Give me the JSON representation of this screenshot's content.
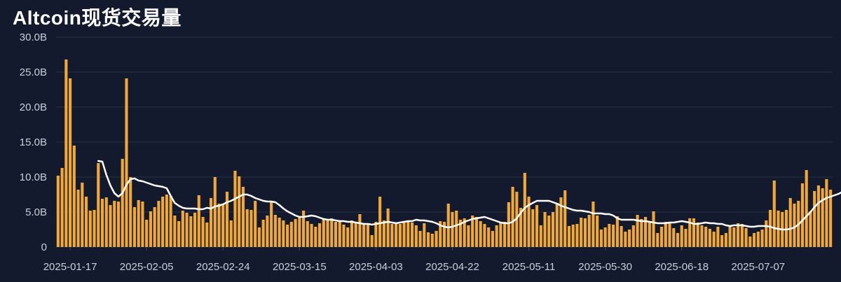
{
  "chart_data": {
    "type": "bar",
    "title": "Altcoin现货交易量",
    "xlabel": "",
    "ylabel": "",
    "y_unit": "B",
    "ylim": [
      0,
      30
    ],
    "y_ticks": [
      "0",
      "5.0B",
      "10.0B",
      "15.0B",
      "20.0B",
      "25.0B",
      "30.0B"
    ],
    "x_tick_labels": [
      "2025-01-17",
      "2025-02-05",
      "2025-02-24",
      "2025-03-15",
      "2025-04-03",
      "2025-04-22",
      "2025-05-11",
      "2025-05-30",
      "2025-06-18",
      "2025-07-07"
    ],
    "grid": true,
    "bar_color": "#f0a73c",
    "line_color": "#ffffff",
    "start_date": "2025-01-14",
    "series": [
      {
        "type": "bar",
        "values": [
          10.2,
          11.3,
          26.8,
          24.1,
          14.5,
          8.2,
          9.2,
          7.2,
          5.2,
          5.3,
          12.0,
          6.9,
          7.1,
          6.0,
          6.6,
          6.5,
          12.6,
          24.1,
          10.0,
          5.7,
          6.7,
          6.5,
          3.9,
          5.1,
          5.7,
          6.6,
          7.2,
          7.5,
          7.3,
          4.5,
          3.7,
          5.2,
          4.9,
          4.4,
          4.9,
          7.4,
          4.3,
          3.5,
          7.0,
          10.0,
          6.2,
          6.2,
          7.9,
          3.8,
          10.9,
          10.1,
          8.6,
          5.4,
          5.3,
          6.6,
          2.8,
          3.9,
          4.5,
          6.4,
          4.6,
          4.2,
          3.8,
          3.2,
          3.6,
          4.0,
          4.3,
          5.2,
          3.7,
          3.3,
          2.9,
          3.4,
          4.1,
          3.9,
          4.1,
          3.6,
          3.6,
          3.2,
          2.8,
          3.8,
          3.6,
          4.7,
          3.2,
          3.4,
          1.7,
          3.6,
          7.2,
          3.8,
          5.5,
          3.3,
          3.5,
          3.3,
          3.6,
          3.6,
          3.5,
          3.1,
          2.3,
          3.4,
          2.1,
          1.9,
          2.3,
          3.7,
          3.6,
          6.2,
          5.0,
          5.2,
          3.9,
          4.1,
          3.1,
          4.5,
          4.3,
          3.7,
          3.3,
          2.8,
          2.3,
          3.1,
          3.5,
          3.6,
          6.4,
          8.6,
          7.9,
          5.6,
          10.6,
          7.2,
          5.4,
          6.0,
          3.1,
          5.0,
          4.5,
          5.0,
          6.3,
          7.1,
          8.1,
          3.0,
          3.2,
          3.3,
          4.2,
          4.1,
          4.6,
          6.5,
          4.5,
          2.5,
          2.8,
          3.3,
          3.2,
          4.4,
          3.0,
          2.2,
          2.5,
          3.1,
          4.6,
          4.0,
          4.3,
          3.5,
          5.1,
          2.0,
          2.9,
          3.6,
          3.6,
          2.7,
          2.0,
          3.1,
          2.6,
          4.1,
          4.1,
          3.5,
          3.1,
          2.9,
          2.6,
          2.2,
          2.9,
          1.7,
          2.0,
          2.9,
          2.8,
          3.4,
          3.3,
          2.7,
          1.5,
          2.0,
          2.2,
          2.5,
          3.8,
          5.3,
          9.5,
          5.2,
          5.0,
          5.3,
          7.0,
          6.2,
          6.6,
          9.1,
          11.0,
          5.1,
          8.0,
          8.8,
          8.4,
          9.7,
          8.2
        ]
      },
      {
        "type": "line",
        "start_index": 10,
        "values": [
          12.3,
          12.2,
          10.3,
          8.8,
          7.7,
          7.2,
          7.7,
          8.9,
          9.7,
          9.8,
          9.5,
          9.4,
          9.2,
          9.0,
          8.8,
          8.7,
          8.6,
          8.4,
          7.3,
          6.3,
          5.9,
          5.6,
          5.5,
          5.5,
          5.5,
          5.4,
          5.4,
          5.6,
          5.5,
          5.8,
          5.9,
          6.1,
          6.4,
          6.6,
          6.9,
          7.2,
          7.5,
          7.5,
          7.3,
          7.0,
          6.8,
          6.6,
          6.5,
          6.5,
          6.4,
          6.0,
          5.5,
          5.1,
          4.8,
          4.5,
          4.3,
          4.3,
          4.4,
          4.5,
          4.4,
          4.2,
          4.0,
          3.9,
          3.9,
          3.8,
          3.7,
          3.7,
          3.6,
          3.6,
          3.5,
          3.4,
          3.3,
          3.3,
          3.2,
          3.3,
          3.4,
          3.5,
          3.6,
          3.5,
          3.4,
          3.5,
          3.6,
          3.7,
          3.7,
          3.9,
          3.8,
          3.8,
          3.7,
          3.6,
          3.4,
          3.1,
          2.9,
          2.8,
          2.9,
          3.1,
          3.3,
          3.6,
          3.8,
          4.0,
          4.1,
          4.2,
          4.3,
          4.1,
          3.9,
          3.7,
          3.5,
          3.4,
          3.4,
          3.6,
          4.1,
          4.9,
          5.6,
          6.0,
          6.3,
          6.6,
          6.6,
          6.6,
          6.6,
          6.4,
          6.2,
          5.9,
          5.7,
          5.5,
          5.3,
          5.2,
          5.2,
          5.1,
          5.0,
          4.8,
          4.8,
          4.8,
          4.7,
          4.7,
          4.5,
          4.1,
          3.9,
          3.9,
          3.9,
          3.9,
          3.8,
          3.7,
          3.7,
          3.6,
          3.5,
          3.4,
          3.4,
          3.4,
          3.5,
          3.5,
          3.6,
          3.7,
          3.6,
          3.5,
          3.3,
          3.3,
          3.4,
          3.5,
          3.4,
          3.4,
          3.3,
          3.3,
          3.1,
          3.0,
          3.1,
          3.1,
          3.1,
          3.0,
          2.9,
          2.9,
          3.0,
          3.0,
          3.0,
          2.9,
          2.7,
          2.6,
          2.5,
          2.5,
          2.6,
          2.8,
          3.2,
          3.8,
          4.4,
          5.0,
          5.7,
          6.3,
          6.7,
          7.0,
          7.2,
          7.4,
          7.6,
          7.9,
          8.3,
          7.6
        ]
      }
    ]
  }
}
